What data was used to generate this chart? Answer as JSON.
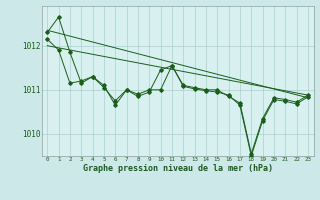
{
  "bg_color": "#cce8e8",
  "plot_bg_color": "#d8f0f0",
  "grid_color": "#aacfcf",
  "line_color": "#1a5e1a",
  "text_color": "#1a5e1a",
  "xlabel": "Graphe pression niveau de la mer (hPa)",
  "ylim": [
    1009.5,
    1012.9
  ],
  "xlim": [
    -0.5,
    23.5
  ],
  "yticks": [
    1010,
    1011,
    1012
  ],
  "xticks": [
    0,
    1,
    2,
    3,
    4,
    5,
    6,
    7,
    8,
    9,
    10,
    11,
    12,
    13,
    14,
    15,
    16,
    17,
    18,
    19,
    20,
    21,
    22,
    23
  ],
  "series1": [
    1012.3,
    1012.65,
    1011.85,
    1011.15,
    1011.3,
    1011.1,
    1010.65,
    1011.0,
    1010.9,
    1011.0,
    1011.0,
    1011.55,
    1011.1,
    1011.05,
    1011.0,
    1011.0,
    1010.85,
    1010.7,
    1009.55,
    1010.35,
    1010.82,
    1010.78,
    1010.72,
    1010.88
  ],
  "series2": [
    1012.15,
    1011.9,
    1011.15,
    1011.2,
    1011.3,
    1011.05,
    1010.75,
    1011.0,
    1010.85,
    1010.95,
    1011.45,
    1011.55,
    1011.08,
    1011.02,
    1010.98,
    1010.95,
    1010.88,
    1010.65,
    1009.5,
    1010.3,
    1010.78,
    1010.74,
    1010.68,
    1010.84
  ],
  "trend1_x": [
    0,
    23
  ],
  "trend1_y": [
    1012.35,
    1010.82
  ],
  "trend2_x": [
    0,
    23
  ],
  "trend2_y": [
    1012.0,
    1010.88
  ]
}
